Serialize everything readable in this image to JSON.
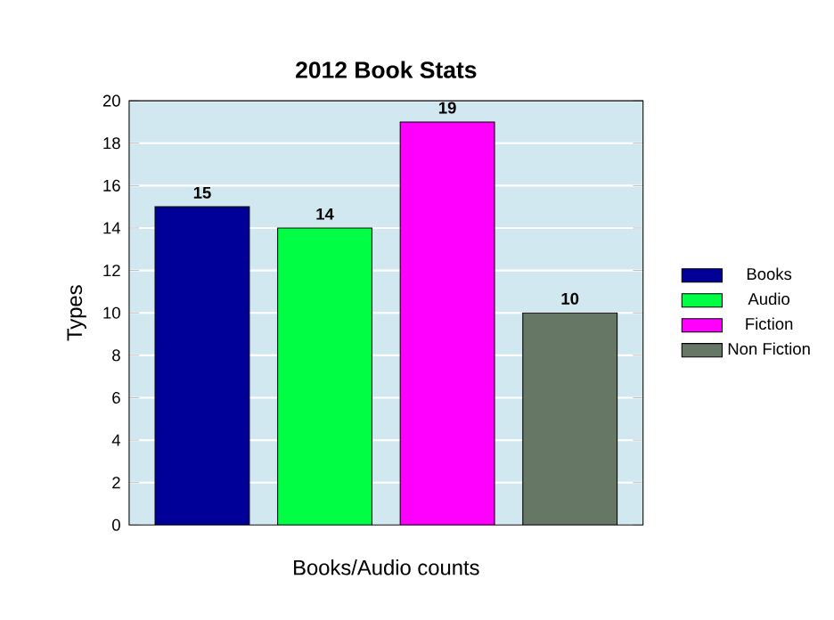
{
  "chart_data": {
    "type": "bar",
    "title": "2012 Book Stats",
    "xlabel": "Books/Audio counts",
    "ylabel": "Types",
    "categories": [
      null
    ],
    "series": [
      {
        "name": "Books",
        "color": "#000099",
        "values": [
          15
        ]
      },
      {
        "name": "Audio",
        "color": "#00ff44",
        "values": [
          14
        ]
      },
      {
        "name": "Fiction",
        "color": "#ff00ff",
        "values": [
          19
        ]
      },
      {
        "name": "Non Fiction",
        "color": "#667766",
        "values": [
          10
        ]
      }
    ],
    "ylim": [
      0,
      20
    ],
    "yticks": [
      0,
      2,
      4,
      6,
      8,
      10,
      12,
      14,
      16,
      18,
      20
    ],
    "grid": "y",
    "legend": "right",
    "data_labels": true
  }
}
